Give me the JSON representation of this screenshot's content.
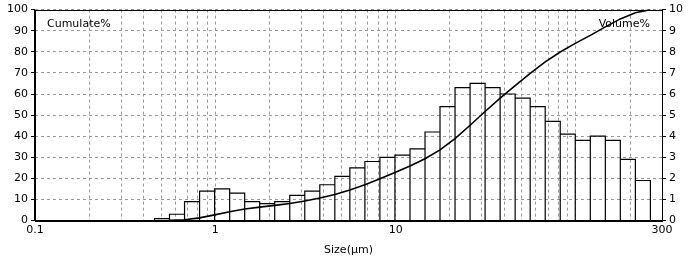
{
  "chart_data": {
    "type": "histogram",
    "x_label": "Size(µm)",
    "log": "x",
    "grid": true,
    "xlim": [
      0.1,
      300
    ],
    "xticks": [
      0.1,
      1,
      10,
      300
    ],
    "xminor_ticks": [
      0.2,
      0.3,
      0.4,
      0.5,
      0.6,
      0.7,
      0.8,
      0.9,
      2,
      3,
      4,
      5,
      6,
      7,
      8,
      9,
      20,
      30,
      40,
      50,
      60,
      70,
      80,
      90,
      100,
      200
    ],
    "ylim": [
      0,
      100
    ],
    "yticks": [
      0,
      10,
      20,
      30,
      40,
      50,
      60,
      70,
      80,
      90,
      100
    ],
    "y2lim": [
      0,
      10
    ],
    "y2ticks": [
      0,
      1,
      2,
      3,
      4,
      5,
      6,
      7,
      8,
      9,
      10
    ],
    "bins": [
      0.46,
      0.557,
      0.675,
      0.818,
      0.991,
      1.201,
      1.455,
      1.762,
      2.135,
      2.587,
      3.134,
      3.797,
      4.6,
      5.573,
      6.752,
      8.18,
      9.91,
      12.01,
      14.55,
      17.62,
      21.35,
      25.87,
      31.34,
      37.97,
      46.0,
      55.73,
      67.52,
      81.8,
      99.1,
      120.1,
      145.5,
      176.2,
      213.5,
      258.7
    ],
    "series": [
      {
        "name": "Volume%",
        "type": "histogram",
        "axis": "y2",
        "color": "#000000",
        "values": [
          0.1,
          0.3,
          0.9,
          1.4,
          1.5,
          1.3,
          0.9,
          0.8,
          0.9,
          1.2,
          1.4,
          1.7,
          2.1,
          2.5,
          2.8,
          3.0,
          3.1,
          3.4,
          4.2,
          5.4,
          6.3,
          6.5,
          6.3,
          6.0,
          5.8,
          5.4,
          4.7,
          4.1,
          3.8,
          4.0,
          3.8,
          2.9,
          1.9
        ]
      },
      {
        "name": "Cumulate%",
        "type": "line",
        "axis": "y",
        "color": "#000000",
        "x": [
          0.46,
          0.557,
          0.675,
          0.818,
          0.991,
          1.201,
          1.455,
          1.762,
          2.135,
          2.587,
          3.134,
          3.797,
          4.6,
          5.573,
          6.752,
          8.18,
          9.91,
          12.01,
          14.55,
          17.62,
          21.35,
          25.87,
          31.34,
          37.97,
          46.0,
          55.73,
          67.52,
          81.8,
          99.1,
          120.1,
          145.5,
          176.2,
          213.5,
          258.7
        ],
        "values": [
          0,
          0.1,
          0.4,
          1.3,
          2.7,
          4.2,
          5.5,
          6.4,
          7.2,
          8.1,
          9.3,
          10.7,
          12.4,
          14.5,
          17.0,
          19.8,
          22.8,
          25.9,
          29.3,
          33.5,
          38.9,
          45.2,
          51.7,
          58.0,
          64.0,
          69.8,
          75.2,
          79.9,
          84.0,
          87.8,
          91.8,
          95.6,
          98.5,
          100
        ]
      }
    ]
  }
}
